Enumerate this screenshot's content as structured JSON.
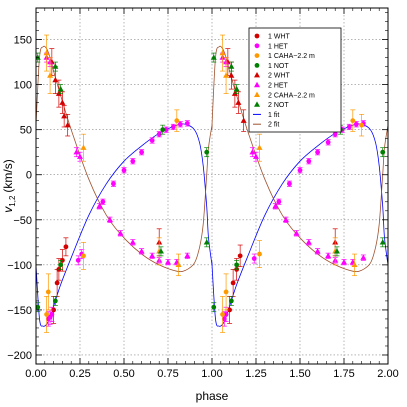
{
  "chart_data": {
    "type": "scatter",
    "title": "",
    "xlabel": "phase",
    "ylabel_main": "v",
    "ylabel_sub": "1,2",
    "ylabel_unit": "(km/s)",
    "xlim": [
      0.0,
      2.0
    ],
    "ylim": [
      -210,
      185
    ],
    "xticks": [
      0.0,
      0.25,
      0.5,
      0.75,
      1.0,
      1.25,
      1.5,
      1.75,
      2.0
    ],
    "xtick_labels": [
      "0.00",
      "0.25",
      "0.50",
      "0.75",
      "1.00",
      "1.25",
      "1.50",
      "1.75",
      "2.00"
    ],
    "yticks": [
      -200,
      -150,
      -100,
      -50,
      0,
      50,
      100,
      150
    ],
    "ytick_labels": [
      "−200",
      "−150",
      "−100",
      "−50",
      "0",
      "50",
      "100",
      "150"
    ],
    "grid": true,
    "legend_position": "top-right",
    "legend": [
      {
        "label": "1 WHT",
        "color": "#d40000",
        "marker": "circle"
      },
      {
        "label": "1 HET",
        "color": "#ff00ff",
        "marker": "circle"
      },
      {
        "label": "1 CAHA−2.2 m",
        "color": "#ff9900",
        "marker": "circle"
      },
      {
        "label": "1 NOT",
        "color": "#008000",
        "marker": "circle"
      },
      {
        "label": "2 WHT",
        "color": "#d40000",
        "marker": "triangle"
      },
      {
        "label": "2 HET",
        "color": "#ff00ff",
        "marker": "triangle"
      },
      {
        "label": "2 CAHA−2.2 m",
        "color": "#ff9900",
        "marker": "triangle"
      },
      {
        "label": "2 NOT",
        "color": "#008000",
        "marker": "triangle"
      },
      {
        "label": "1 fit",
        "color": "#0000ff",
        "marker": "line"
      },
      {
        "label": "2 fit",
        "color": "#a0522d",
        "marker": "line"
      }
    ],
    "series": [
      {
        "name": "1 WHT",
        "color": "#d40000",
        "marker": "circle",
        "x": [
          0.1,
          0.12,
          0.13,
          0.15,
          0.17,
          1.1,
          1.12,
          1.14,
          1.16
        ],
        "y": [
          -150,
          -120,
          -105,
          -95,
          -80,
          -150,
          -120,
          -105,
          -90
        ],
        "err": [
          15,
          15,
          12,
          12,
          10,
          15,
          15,
          12,
          12
        ]
      },
      {
        "name": "1 HET",
        "color": "#ff00ff",
        "marker": "circle",
        "x": [
          0.07,
          0.08,
          0.09,
          0.24,
          0.26,
          0.38,
          0.44,
          0.5,
          0.55,
          0.6,
          0.66,
          0.7,
          0.74,
          0.78,
          0.82,
          0.86,
          1.07,
          1.08,
          1.24,
          1.38,
          1.44,
          1.5,
          1.55,
          1.6,
          1.66,
          1.7,
          1.74,
          1.78,
          1.82,
          1.86
        ],
        "y": [
          -160,
          -158,
          -155,
          -95,
          -88,
          -30,
          -10,
          5,
          15,
          25,
          38,
          45,
          50,
          53,
          56,
          57,
          -160,
          -155,
          -93,
          -30,
          -10,
          5,
          15,
          25,
          36,
          45,
          50,
          53,
          56,
          57
        ],
        "err": [
          8,
          8,
          8,
          5,
          5,
          3,
          3,
          3,
          3,
          3,
          3,
          3,
          3,
          3,
          3,
          3,
          8,
          8,
          5,
          3,
          3,
          3,
          3,
          3,
          3,
          3,
          3,
          3,
          3,
          3
        ]
      },
      {
        "name": "1 CAHA−2.2 m",
        "color": "#ff9900",
        "marker": "circle",
        "x": [
          0.06,
          0.07,
          0.27,
          0.8,
          1.06,
          1.08,
          1.27,
          1.8,
          1.85
        ],
        "y": [
          -155,
          -130,
          -90,
          60,
          -155,
          -130,
          -88,
          60,
          55
        ],
        "err": [
          20,
          20,
          15,
          12,
          20,
          20,
          15,
          12,
          12
        ]
      },
      {
        "name": "1 NOT",
        "color": "#008000",
        "marker": "circle",
        "x": [
          0.01,
          0.11,
          0.14,
          0.72,
          0.97,
          1.01,
          1.11,
          1.14,
          1.73,
          1.97
        ],
        "y": [
          -147,
          -140,
          -100,
          50,
          25,
          -147,
          -140,
          -100,
          50,
          25
        ],
        "err": [
          5,
          5,
          5,
          5,
          5,
          5,
          5,
          5,
          5,
          5
        ]
      },
      {
        "name": "2 WHT",
        "color": "#d40000",
        "marker": "triangle",
        "x": [
          0.09,
          0.11,
          0.13,
          0.15,
          0.16,
          0.18,
          0.7,
          1.09,
          1.11,
          1.13,
          1.15,
          1.18,
          1.7
        ],
        "y": [
          125,
          105,
          90,
          80,
          65,
          55,
          -75,
          125,
          110,
          90,
          80,
          60,
          -75
        ],
        "err": [
          15,
          15,
          15,
          12,
          12,
          12,
          15,
          15,
          15,
          15,
          12,
          12,
          15
        ]
      },
      {
        "name": "2 HET",
        "color": "#ff00ff",
        "marker": "triangle",
        "x": [
          0.06,
          0.08,
          0.23,
          0.25,
          0.36,
          0.42,
          0.48,
          0.55,
          0.6,
          0.66,
          0.7,
          0.75,
          0.8,
          0.86,
          1.06,
          1.08,
          1.23,
          1.25,
          1.36,
          1.42,
          1.48,
          1.55,
          1.6,
          1.66,
          1.7,
          1.75,
          1.8,
          1.86
        ],
        "y": [
          130,
          125,
          25,
          20,
          -35,
          -50,
          -65,
          -75,
          -85,
          -90,
          -95,
          -97,
          -97,
          -90,
          130,
          125,
          25,
          20,
          -35,
          -50,
          -65,
          -75,
          -85,
          -90,
          -95,
          -97,
          -97,
          -92
        ],
        "err": [
          5,
          5,
          5,
          5,
          3,
          3,
          3,
          3,
          3,
          3,
          3,
          3,
          3,
          3,
          5,
          5,
          5,
          5,
          3,
          3,
          3,
          3,
          3,
          3,
          3,
          3,
          3,
          3
        ]
      },
      {
        "name": "2 CAHA−2.2 m",
        "color": "#ff9900",
        "marker": "triangle",
        "x": [
          0.06,
          0.08,
          0.27,
          0.7,
          0.81,
          1.06,
          1.08,
          1.27,
          1.7,
          1.81
        ],
        "y": [
          135,
          110,
          30,
          -85,
          -100,
          135,
          110,
          30,
          -85,
          -100
        ],
        "err": [
          20,
          20,
          15,
          15,
          12,
          20,
          20,
          15,
          15,
          12
        ]
      },
      {
        "name": "2 NOT",
        "color": "#008000",
        "marker": "triangle",
        "x": [
          0.01,
          0.11,
          0.14,
          0.71,
          0.97,
          1.01,
          1.11,
          1.14,
          1.71,
          1.97
        ],
        "y": [
          130,
          120,
          95,
          -85,
          -75,
          130,
          120,
          95,
          -85,
          -75
        ],
        "err": [
          5,
          5,
          5,
          5,
          5,
          5,
          5,
          5,
          5,
          5
        ]
      }
    ],
    "fit_1": {
      "name": "1 fit",
      "color": "#0000ff",
      "phase": [
        0.0,
        0.02,
        0.04,
        0.06,
        0.08,
        0.1,
        0.14,
        0.2,
        0.3,
        0.4,
        0.5,
        0.6,
        0.7,
        0.8,
        0.85,
        0.9,
        0.93,
        0.95,
        0.97,
        0.98,
        1.0
      ],
      "v": [
        -100,
        -160,
        -168,
        -166,
        -158,
        -146,
        -122,
        -92,
        -45,
        -10,
        15,
        32,
        46,
        55,
        56,
        50,
        35,
        10,
        -35,
        -70,
        -100
      ]
    },
    "fit_2": {
      "name": "2 fit",
      "color": "#a0522d",
      "phase": [
        0.0,
        0.02,
        0.04,
        0.06,
        0.08,
        0.1,
        0.14,
        0.2,
        0.3,
        0.4,
        0.5,
        0.6,
        0.7,
        0.8,
        0.85,
        0.9,
        0.93,
        0.95,
        0.97,
        0.98,
        1.0
      ],
      "v": [
        55,
        130,
        142,
        140,
        130,
        115,
        88,
        50,
        -5,
        -45,
        -70,
        -88,
        -100,
        -107,
        -106,
        -98,
        -80,
        -55,
        0,
        30,
        55
      ]
    }
  }
}
